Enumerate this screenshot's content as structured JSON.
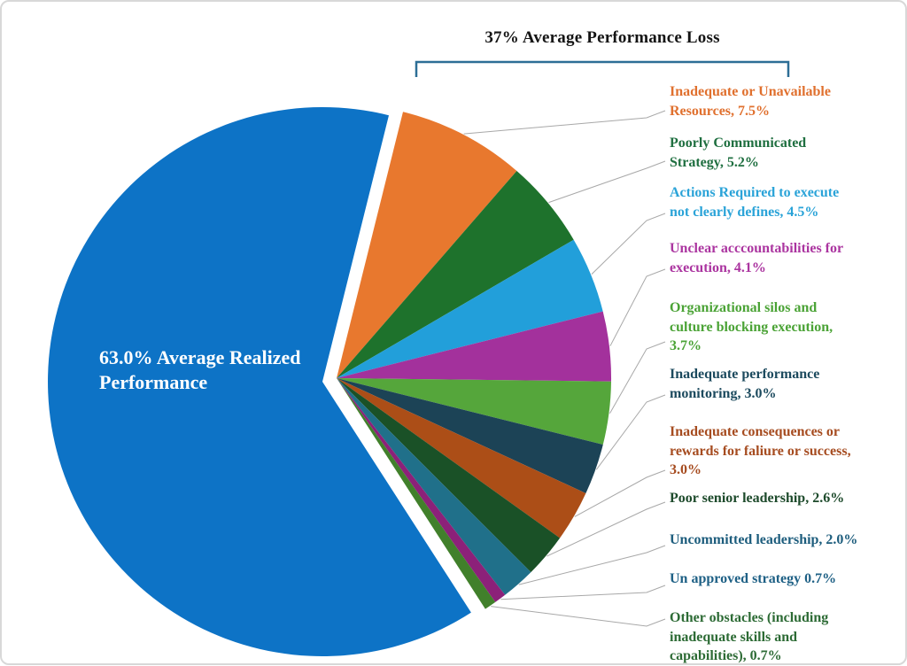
{
  "header": {
    "loss_group_title": "37% Average Performance Loss"
  },
  "bracket": {
    "color": "#2d6e96"
  },
  "leader_line_color": "#a8a8a8",
  "main_slice_label": {
    "text": "63.0% Average Realized\nPerformance"
  },
  "chart_data": {
    "type": "pie",
    "title": "37% Average Performance Loss",
    "legend_position": "right",
    "main_slice": {
      "label": "63.0% Average Realized Performance",
      "value": 63.0,
      "color": "#0d73c6",
      "label_color": "#ffffff"
    },
    "loss_total_percent": 37,
    "slices": [
      {
        "label": "Inadequate or Unavailable Resources",
        "value": 7.5,
        "color": "#e8782e",
        "label_color": "#e0702e",
        "label_lines": "Inadequate or Unavailable\nResources, 7.5%"
      },
      {
        "label": "Poorly Communicated Strategy",
        "value": 5.2,
        "color": "#1e722c",
        "label_color": "#1f6f40",
        "label_lines": "Poorly Communicated\nStrategy, 5.2%"
      },
      {
        "label": "Actions Required to execute not clearly defines",
        "value": 4.5,
        "color": "#229fda",
        "label_color": "#2aa3d8",
        "label_lines": "Actions Required to execute\nnot clearly defines, 4.5%"
      },
      {
        "label": "Unclear acccountabilities for execution",
        "value": 4.1,
        "color": "#a3319c",
        "label_color": "#ab35a0",
        "label_lines": "Unclear acccountabilities for\nexecution, 4.1%"
      },
      {
        "label": "Organizational silos and culture blocking execution",
        "value": 3.7,
        "color": "#55a63b",
        "label_color": "#4ba336",
        "label_lines": "Organizational silos and\nculture blocking execution,\n3.7%"
      },
      {
        "label": "Inadequate performance monitoring",
        "value": 3.0,
        "color": "#1c4356",
        "label_color": "#1c4a5e",
        "label_lines": "Inadequate performance\nmonitoring, 3.0%"
      },
      {
        "label": "Inadequate consequences or rewards for faliure or success",
        "value": 3.0,
        "color": "#ac4e17",
        "label_color": "#a64c20",
        "label_lines": "Inadequate consequences or\nrewards for faliure or success,\n3.0%"
      },
      {
        "label": "Poor senior leadership",
        "value": 2.6,
        "color": "#1a5127",
        "label_color": "#1d4a2b",
        "label_lines": "Poor senior leadership, 2.6%"
      },
      {
        "label": "Uncommitted leadership",
        "value": 2.0,
        "color": "#20708a",
        "label_color": "#1d5d7d",
        "label_lines": "Uncommitted leadership, 2.0%"
      },
      {
        "label": "Un approved strategy",
        "value": 0.7,
        "color": "#8c2179",
        "label_color": "#1e6085",
        "label_lines": "Un approved strategy 0.7%"
      },
      {
        "label": "Other obstacles (including inadequate skills and capabilities)",
        "value": 0.7,
        "color": "#41802b",
        "label_color": "#2d6b35",
        "label_lines": "Other obstacles (including\ninadequate skills and\ncapabilities), 0.7%"
      }
    ]
  }
}
